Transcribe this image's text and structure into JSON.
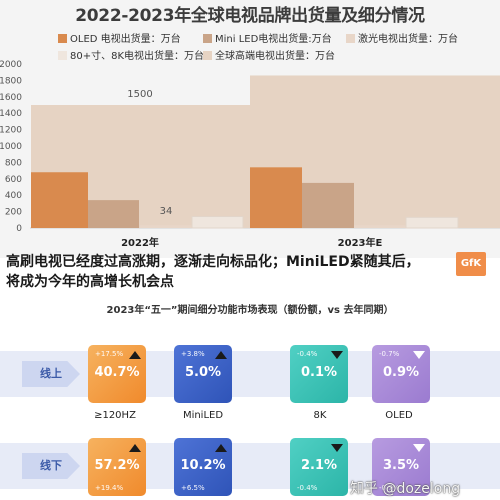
{
  "chart_data": {
    "type": "bar",
    "title": "2022-2023年全球电视品牌出货量及细分情况",
    "categories": [
      "2022年",
      "2023年E"
    ],
    "yticks": [
      0,
      200,
      400,
      600,
      800,
      1000,
      1200,
      1400,
      1600,
      1800,
      2000
    ],
    "ylim": [
      0,
      2000
    ],
    "grid": false,
    "legend_position": "top",
    "series": [
      {
        "name": "OLED 电视出货量：万台",
        "color": "#d98a4e",
        "values": [
          680,
          740
        ]
      },
      {
        "name": "Mini LED电视出货量:万台",
        "color": "#c9a488",
        "values": [
          340,
          550
        ]
      },
      {
        "name": "激光电视出货量：万台",
        "color": "#e8d6c8",
        "values": [
          34,
          34
        ]
      },
      {
        "name": "80+寸、8K电视出货量：万台",
        "color": "#efe6de",
        "values": [
          140,
          130
        ]
      },
      {
        "name": "全球高端电视出货量：万台",
        "color": "#e6d3c3",
        "values": [
          1500,
          1860
        ]
      }
    ],
    "data_labels": [
      "1500",
      "34"
    ]
  },
  "headline": {
    "line1": "高刷电视已经度过高涨期，逐渐走向标品化；MiniLED紧随其后，",
    "line2": "将成为今年的高增长机会点"
  },
  "logo_text": "GfK",
  "table": {
    "title": "2023年“五一”期间细分功能市场表现（额份额，vs 去年同期）",
    "row_labels": [
      "线上",
      "线下"
    ],
    "categories": [
      "≥120HZ",
      "MiniLED",
      "8K",
      "OLED"
    ],
    "online": [
      {
        "change": "+17.5%",
        "value": "40.7%",
        "trend": "up"
      },
      {
        "change": "+3.8%",
        "value": "5.0%",
        "trend": "up"
      },
      {
        "change": "-0.4%",
        "value": "0.1%",
        "trend": "down"
      },
      {
        "change": "-0.7%",
        "value": "0.9%",
        "trend": "down"
      }
    ],
    "offline": [
      {
        "change": "+19.4%",
        "value": "57.2%",
        "trend": "up"
      },
      {
        "change": "+6.5%",
        "value": "10.2%",
        "trend": "up"
      },
      {
        "change": "-0.4%",
        "value": "2.1%",
        "trend": "down"
      },
      {
        "change": "-0.7%",
        "value": "3.5%",
        "trend": "down"
      }
    ]
  },
  "watermark": "知乎 @dozelong"
}
